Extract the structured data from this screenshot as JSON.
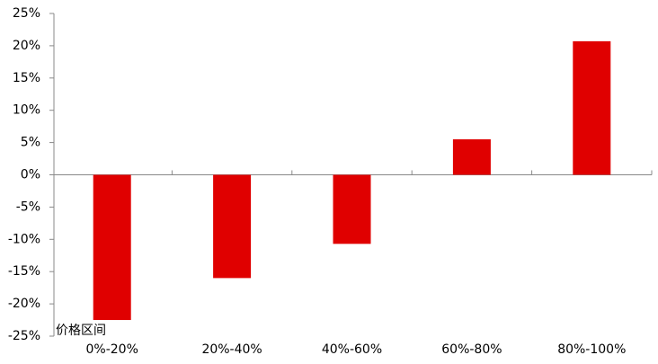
{
  "chart_data": {
    "type": "bar",
    "x_label": "价格区间",
    "categories": [
      "0%-20%",
      "20%-40%",
      "40%-60%",
      "60%-80%",
      "80%-100%"
    ],
    "values": [
      -22.5,
      -16,
      -10.7,
      5.5,
      20.7
    ],
    "color": "#e00000",
    "ylim": [
      -25,
      25
    ],
    "yticks": [
      {
        "value": -25,
        "label": "-25%"
      },
      {
        "value": -20,
        "label": "-20%"
      },
      {
        "value": -15,
        "label": "-15%"
      },
      {
        "value": -10,
        "label": "-10%"
      },
      {
        "value": -5,
        "label": "-5%"
      },
      {
        "value": 0,
        "label": "0%"
      },
      {
        "value": 5,
        "label": "5%"
      },
      {
        "value": 10,
        "label": "10%"
      },
      {
        "value": 15,
        "label": "15%"
      },
      {
        "value": 20,
        "label": "20%"
      },
      {
        "value": 25,
        "label": "25%"
      }
    ],
    "grid": false
  }
}
